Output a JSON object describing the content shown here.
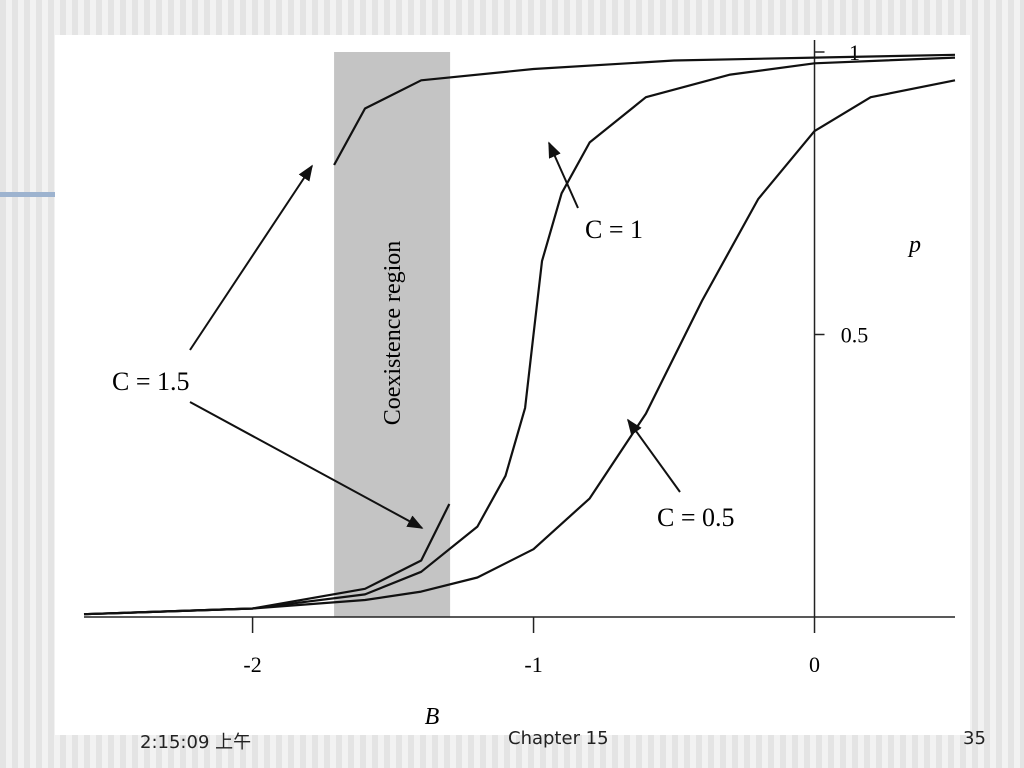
{
  "chart_data": {
    "type": "line",
    "x_label": "B",
    "y_label": "p",
    "xlim": [
      -2.6,
      0.5
    ],
    "ylim": [
      0,
      1
    ],
    "xticks": [
      -2,
      -1,
      0
    ],
    "yticks": [
      0.5,
      1
    ],
    "coexistence_region": {
      "label": "Coexistence region",
      "xrange": [
        -1.71,
        -1.297
      ]
    },
    "series": [
      {
        "name": "C = 0.5",
        "color": "#111111",
        "x": [
          -2.6,
          -2.0,
          -1.6,
          -1.4,
          -1.2,
          -1.0,
          -0.8,
          -0.6,
          -0.5,
          -0.4,
          -0.2,
          0,
          0.2,
          0.5
        ],
        "values": [
          0.005,
          0.015,
          0.03,
          0.045,
          0.07,
          0.12,
          0.21,
          0.36,
          0.46,
          0.56,
          0.74,
          0.86,
          0.92,
          0.95
        ]
      },
      {
        "name": "C = 1",
        "color": "#111111",
        "x": [
          -2.6,
          -2.0,
          -1.6,
          -1.4,
          -1.2,
          -1.1,
          -1.03,
          -1.0,
          -0.97,
          -0.9,
          -0.8,
          -0.6,
          -0.3,
          0,
          0.5
        ],
        "values": [
          0.005,
          0.015,
          0.04,
          0.08,
          0.16,
          0.25,
          0.37,
          0.5,
          0.63,
          0.75,
          0.84,
          0.92,
          0.96,
          0.98,
          0.99
        ]
      },
      {
        "name": "C = 1.5",
        "color": "#111111",
        "x": [
          -2.6,
          -2.0,
          -1.6,
          -1.4,
          -1.3,
          null,
          -1.71,
          -1.6,
          -1.4,
          -1.0,
          -0.5,
          0,
          0.5
        ],
        "values": [
          0.005,
          0.015,
          0.05,
          0.1,
          0.2,
          null,
          0.8,
          0.9,
          0.95,
          0.97,
          0.985,
          0.99,
          0.995
        ]
      }
    ]
  },
  "footer": {
    "time": "2:15:09 上午",
    "title": "Chapter 15",
    "page": "35"
  }
}
